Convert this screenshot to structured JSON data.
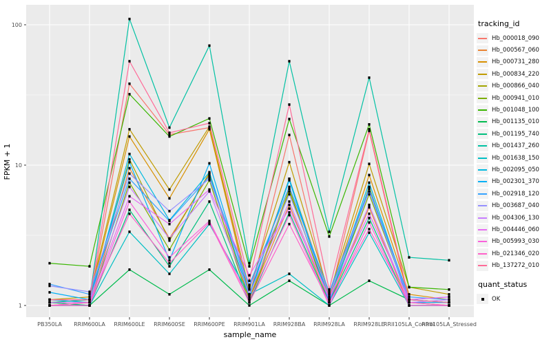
{
  "figure": {
    "background": "#FFFFFF",
    "panel_bg": "#EBEBEB",
    "grid_color": "#FFFFFF",
    "tick_text_color": "#4D4D4D",
    "axis_title_color": "#000000",
    "point_color": "#000000"
  },
  "axes": {
    "x_title": "sample_name",
    "y_title": "FPKM + 1",
    "y_tick_labels": [
      "1",
      "10",
      "100"
    ]
  },
  "legend": {
    "tracking_title": "tracking_id",
    "quant_title": "quant_status",
    "quant_items": [
      {
        "label": "OK",
        "marker": "black-square"
      }
    ]
  },
  "chart_data": {
    "type": "line",
    "title": "",
    "xlabel": "sample_name",
    "ylabel": "FPKM + 1",
    "y_scale": "log10",
    "ylim": [
      1,
      120
    ],
    "y_major_ticks": [
      1,
      10,
      100
    ],
    "y_minor_ticks": [
      3.1623,
      31.623
    ],
    "grid": true,
    "legend_position": "right",
    "point_marker": {
      "shape": "square",
      "color": "#000000",
      "status_label": "OK"
    },
    "categories": [
      "PB350LA",
      "RRIM600LA",
      "RRIM600LE",
      "RRIM600SE",
      "RRIM600PE",
      "RRIM901LA",
      "RRIM928BA",
      "RRIM928LA",
      "RRIM928LE",
      "RRII105LA_Control",
      "RRII105LA_Stressed"
    ],
    "series": [
      {
        "name": "Hb_000018_090",
        "color": "#F8766D",
        "values": [
          1.1,
          1.05,
          38,
          16.5,
          18.5,
          1.15,
          16.4,
          1.1,
          17.5,
          1.05,
          1.05
        ]
      },
      {
        "name": "Hb_000567_060",
        "color": "#EA8331",
        "values": [
          1.0,
          1.0,
          9.5,
          3.0,
          8.6,
          1.1,
          5.2,
          1.05,
          5.0,
          1.0,
          1.0
        ]
      },
      {
        "name": "Hb_000731_280",
        "color": "#D89000",
        "values": [
          1.05,
          1.1,
          16,
          5.8,
          18,
          1.2,
          8.0,
          1.15,
          8.5,
          1.2,
          1.1
        ]
      },
      {
        "name": "Hb_000834_220",
        "color": "#C09B00",
        "values": [
          1.1,
          1.15,
          18,
          6.7,
          18.8,
          1.3,
          10.5,
          1.2,
          10.2,
          1.35,
          1.2
        ]
      },
      {
        "name": "Hb_000866_040",
        "color": "#A3A500",
        "values": [
          1.0,
          1.05,
          11,
          2.9,
          8.8,
          1.1,
          6.8,
          1.05,
          7.0,
          1.05,
          1.0
        ]
      },
      {
        "name": "Hb_000941_010",
        "color": "#7CAE00",
        "values": [
          1.05,
          1.0,
          7.5,
          2.5,
          7.8,
          1.05,
          6.5,
          1.1,
          6.2,
          1.1,
          1.05
        ]
      },
      {
        "name": "Hb_001048_100",
        "color": "#39B600",
        "values": [
          2.0,
          1.9,
          32,
          16,
          21.5,
          1.9,
          21.3,
          3.1,
          19.5,
          1.35,
          1.3
        ]
      },
      {
        "name": "Hb_001135_010",
        "color": "#00BB4E",
        "values": [
          1.0,
          1.0,
          1.8,
          1.2,
          1.8,
          1.0,
          1.5,
          1.0,
          1.5,
          1.1,
          1.05
        ]
      },
      {
        "name": "Hb_001195_740",
        "color": "#00BF7D",
        "values": [
          1.05,
          1.0,
          4.8,
          1.9,
          5.5,
          1.05,
          4.6,
          1.05,
          4.2,
          1.0,
          1.0
        ]
      },
      {
        "name": "Hb_001437_260",
        "color": "#00C1A3",
        "values": [
          1.05,
          1.1,
          110,
          18.5,
          71,
          2.0,
          55,
          3.35,
          42,
          2.2,
          2.1
        ]
      },
      {
        "name": "Hb_001638_150",
        "color": "#00BFC4",
        "values": [
          1.0,
          1.0,
          3.35,
          1.68,
          3.8,
          1.2,
          1.68,
          1.0,
          3.3,
          1.0,
          1.0
        ]
      },
      {
        "name": "Hb_002095_050",
        "color": "#00BAE0",
        "values": [
          1.1,
          1.05,
          12,
          4.05,
          8.9,
          1.15,
          8.0,
          1.1,
          7.5,
          1.1,
          1.05
        ]
      },
      {
        "name": "Hb_002301_370",
        "color": "#00B0F6",
        "values": [
          1.24,
          1.1,
          10.5,
          2.1,
          10.3,
          1.2,
          7.8,
          1.05,
          6.8,
          1.05,
          1.05
        ]
      },
      {
        "name": "Hb_002918_120",
        "color": "#35A2FF",
        "values": [
          1.42,
          1.2,
          8.0,
          4.0,
          8.3,
          1.4,
          7.0,
          1.25,
          6.8,
          1.15,
          1.1
        ]
      },
      {
        "name": "Hb_003687_040",
        "color": "#9590FF",
        "values": [
          1.38,
          1.25,
          8.7,
          4.7,
          8.0,
          1.35,
          6.2,
          1.2,
          6.5,
          1.1,
          1.15
        ]
      },
      {
        "name": "Hb_004306_130",
        "color": "#C77CFF",
        "values": [
          1.1,
          1.1,
          7.0,
          3.0,
          6.5,
          1.2,
          5.5,
          1.1,
          5.2,
          1.05,
          1.1
        ]
      },
      {
        "name": "Hb_004446_060",
        "color": "#E76BF3",
        "values": [
          1.05,
          1.05,
          6.0,
          3.8,
          6.7,
          1.64,
          4.9,
          1.15,
          4.5,
          1.1,
          1.15
        ]
      },
      {
        "name": "Hb_005993_030",
        "color": "#FA62DB",
        "values": [
          1.0,
          1.0,
          5.5,
          2.2,
          4.0,
          1.1,
          4.4,
          1.0,
          3.9,
          1.0,
          1.0
        ]
      },
      {
        "name": "Hb_021346_020",
        "color": "#FF61C9",
        "values": [
          1.0,
          1.05,
          4.5,
          2.0,
          3.9,
          1.05,
          3.8,
          1.05,
          3.5,
          1.05,
          1.0
        ]
      },
      {
        "name": "Hb_137272_010",
        "color": "#FF6A98",
        "values": [
          1.1,
          1.1,
          55,
          17,
          19.9,
          1.5,
          27,
          1.3,
          18,
          1.1,
          1.05
        ]
      }
    ]
  }
}
